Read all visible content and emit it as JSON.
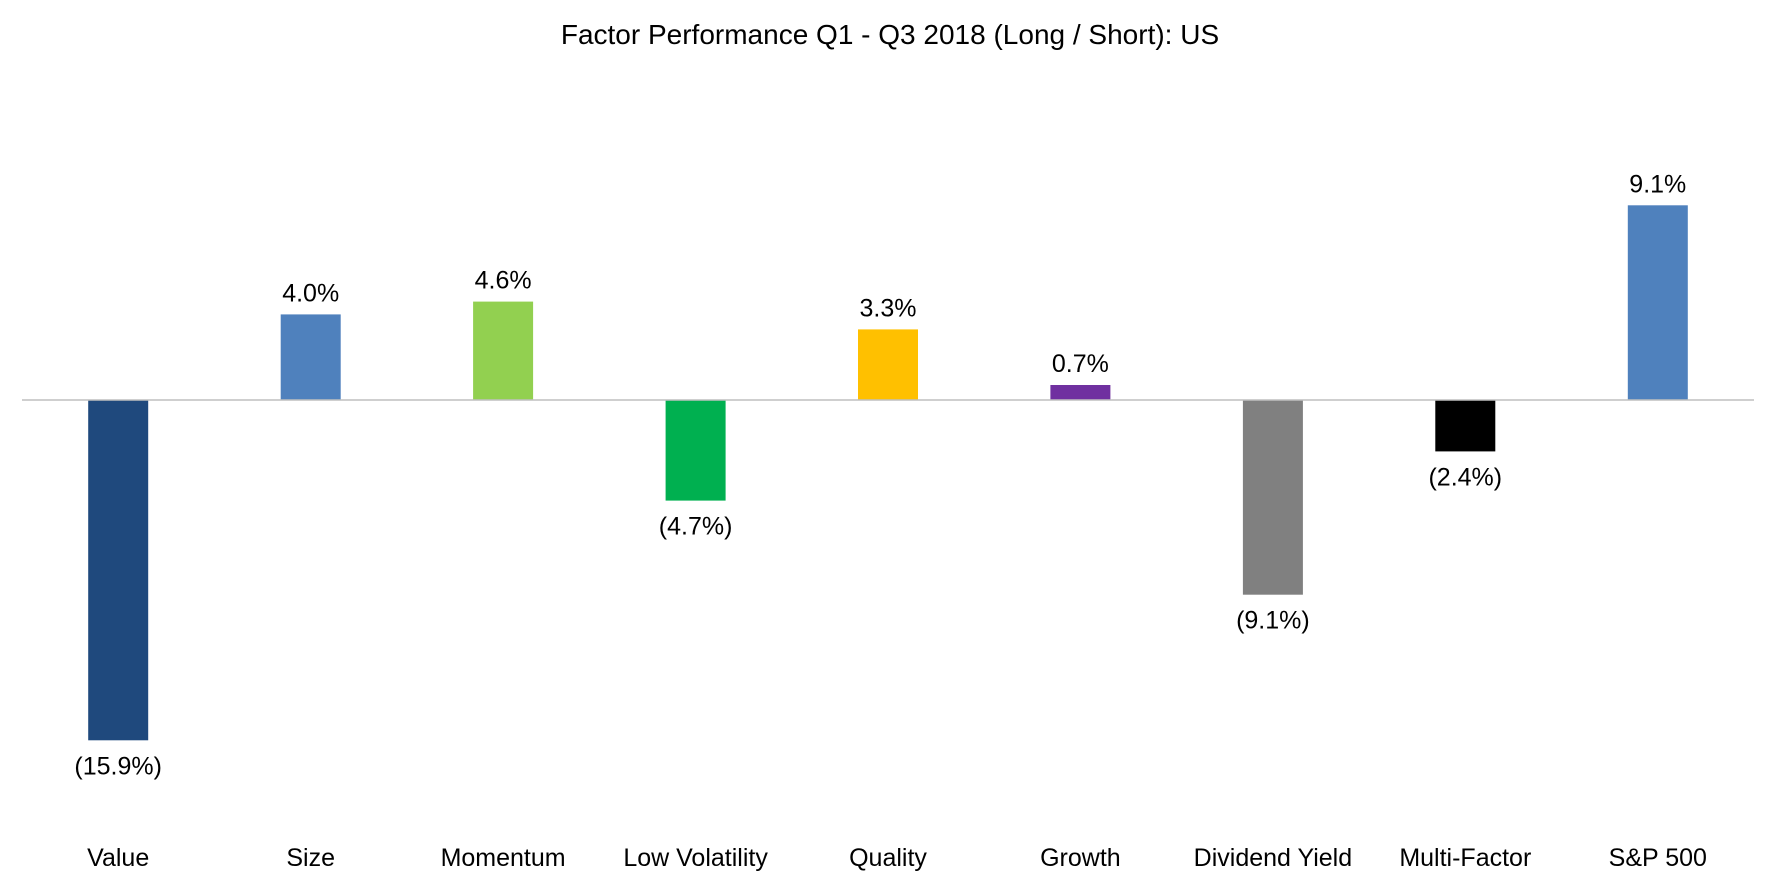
{
  "chart_data": {
    "type": "bar",
    "title": "Factor Performance Q1 - Q3 2018 (Long / Short): US",
    "xlabel": "",
    "ylabel": "",
    "ylim": [
      -18,
      16
    ],
    "grid": false,
    "legend": "none",
    "categories": [
      "Value",
      "Size",
      "Momentum",
      "Low Volatility",
      "Quality",
      "Growth",
      "Dividend Yield",
      "Multi-Factor",
      "S&P 500"
    ],
    "values": [
      -15.9,
      4.0,
      4.6,
      -4.7,
      3.3,
      0.7,
      -9.1,
      -2.4,
      9.1
    ],
    "data_labels": [
      "(15.9%)",
      "4.0%",
      "4.6%",
      "(4.7%)",
      "3.3%",
      "0.7%",
      "(9.1%)",
      "(2.4%)",
      "9.1%"
    ],
    "colors": [
      "#1f497d",
      "#4f81bd",
      "#92d050",
      "#00b050",
      "#ffc000",
      "#7030a0",
      "#808080",
      "#000000",
      "#4f81bd"
    ],
    "zero_line_color": "#bfbfbf"
  }
}
